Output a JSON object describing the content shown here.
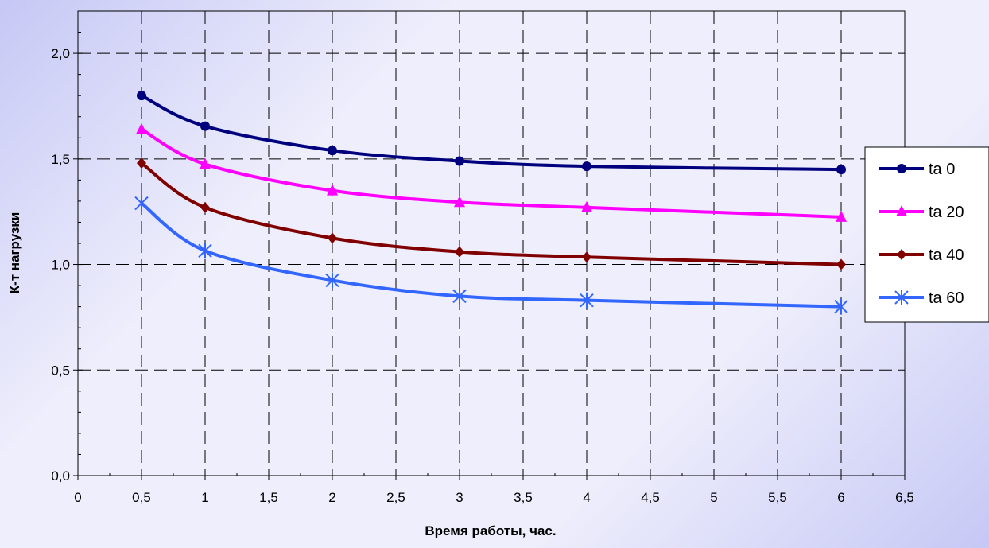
{
  "chart_data": {
    "type": "line",
    "xlabel": "Время работы, час.",
    "ylabel": "К-т нагрузки",
    "xlim": [
      0,
      6.5
    ],
    "ylim": [
      0,
      2.2
    ],
    "x_ticks": [
      "0",
      "0,5",
      "1",
      "1,5",
      "2",
      "2,5",
      "3",
      "3,5",
      "4",
      "4,5",
      "5",
      "5,5",
      "6",
      "6,5"
    ],
    "y_ticks": [
      "0,0",
      "0,5",
      "1,0",
      "1,5",
      "2,0"
    ],
    "grid": true,
    "legend_position": "right",
    "series": [
      {
        "name": "ta 0",
        "color": "#00007f",
        "marker": "circle",
        "x": [
          0.5,
          1,
          2,
          3,
          4,
          6
        ],
        "y": [
          1.8,
          1.655,
          1.54,
          1.49,
          1.465,
          1.45
        ]
      },
      {
        "name": "ta 20",
        "color": "#ff00ff",
        "marker": "triangle",
        "x": [
          0.5,
          1,
          2,
          3,
          4,
          6
        ],
        "y": [
          1.64,
          1.475,
          1.35,
          1.295,
          1.27,
          1.225
        ]
      },
      {
        "name": "ta 40",
        "color": "#800000",
        "marker": "diamond",
        "x": [
          0.5,
          1,
          2,
          3,
          4,
          6
        ],
        "y": [
          1.48,
          1.27,
          1.125,
          1.06,
          1.035,
          1.0
        ]
      },
      {
        "name": "ta 60",
        "color": "#3366ff",
        "marker": "star",
        "x": [
          0.5,
          1,
          2,
          3,
          4,
          6
        ],
        "y": [
          1.29,
          1.065,
          0.925,
          0.85,
          0.83,
          0.8
        ]
      }
    ]
  }
}
